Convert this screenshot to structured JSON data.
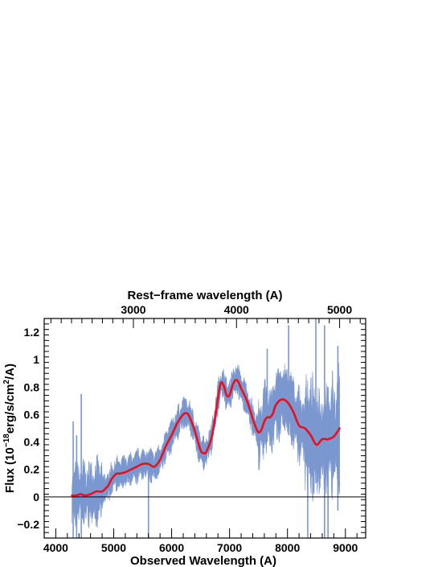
{
  "chart_data": {
    "type": "line",
    "xlabel": "Observed Wavelength (A)",
    "ylabel_parts": {
      "main": "Flux (10",
      "exp1": "−18",
      "mid": "erg/s/cm",
      "exp2": "2",
      "end": "/A)"
    },
    "top_xlabel": "Rest−frame wavelength (A)",
    "xlim": [
      3800,
      9350
    ],
    "ylim": [
      -0.3,
      1.3
    ],
    "x_ticks": [
      4000,
      5000,
      6000,
      7000,
      8000,
      9000
    ],
    "x_tick_labels": [
      "4000",
      "5000",
      "6000",
      "7000",
      "8000",
      "9000"
    ],
    "y_ticks": [
      -0.2,
      0,
      0.2,
      0.4,
      0.6,
      0.8,
      1,
      1.2
    ],
    "y_tick_labels": [
      "−0.2",
      "0",
      "0.2",
      "0.4",
      "0.6",
      "0.8",
      "1",
      "1.2"
    ],
    "top_ticks": [
      3000,
      4000,
      5000
    ],
    "top_tick_labels": [
      "3000",
      "4000",
      "5000"
    ],
    "rest_frame_factor": 1.78,
    "zero_line": 0,
    "colors": {
      "spectrum": "#7b97cf",
      "model": "#e8101d",
      "axis": "#000000"
    },
    "series": [
      {
        "name": "model",
        "x": [
          4280,
          4350,
          4430,
          4500,
          4600,
          4700,
          4800,
          4900,
          4950,
          5000,
          5050,
          5100,
          5200,
          5300,
          5400,
          5500,
          5600,
          5700,
          5800,
          5900,
          6000,
          6100,
          6200,
          6250,
          6300,
          6400,
          6500,
          6550,
          6600,
          6700,
          6800,
          6850,
          6900,
          6950,
          7000,
          7050,
          7100,
          7150,
          7200,
          7300,
          7400,
          7450,
          7500,
          7550,
          7600,
          7650,
          7700,
          7750,
          7800,
          7900,
          8000,
          8100,
          8200,
          8300,
          8400,
          8500,
          8600,
          8700,
          8800,
          8900
        ],
        "y": [
          0.01,
          0.01,
          0.02,
          0.01,
          0.02,
          0.04,
          0.04,
          0.08,
          0.12,
          0.15,
          0.17,
          0.17,
          0.18,
          0.2,
          0.22,
          0.24,
          0.24,
          0.22,
          0.27,
          0.37,
          0.45,
          0.54,
          0.6,
          0.61,
          0.59,
          0.48,
          0.34,
          0.32,
          0.33,
          0.45,
          0.72,
          0.83,
          0.81,
          0.74,
          0.74,
          0.81,
          0.85,
          0.84,
          0.79,
          0.7,
          0.57,
          0.51,
          0.47,
          0.49,
          0.55,
          0.58,
          0.58,
          0.61,
          0.67,
          0.71,
          0.69,
          0.62,
          0.52,
          0.5,
          0.45,
          0.38,
          0.42,
          0.42,
          0.44,
          0.5
        ]
      }
    ]
  }
}
